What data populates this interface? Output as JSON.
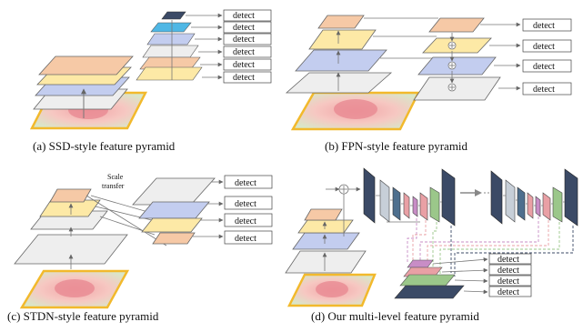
{
  "panels": {
    "a": {
      "caption": "(a) SSD-style feature pyramid"
    },
    "b": {
      "caption": "(b) FPN-style feature pyramid"
    },
    "c": {
      "caption": "(c) STDN-style feature pyramid",
      "annotation_line1": "Scale",
      "annotation_line2": "transfer"
    },
    "d": {
      "caption": "(d) Our multi-level feature pyramid"
    }
  },
  "detect_label": "detect",
  "colors": {
    "peach": "#f6c9a6",
    "yellow": "#fde9a6",
    "blue": "#c3cdef",
    "gray": "#eeeeee",
    "cyan": "#4fb7e5",
    "navy": "#3b4a66",
    "image_border": "#f2b92c",
    "rose": "#e9a0a5",
    "green": "#9bc78a",
    "purple": "#c88dc6",
    "tealblue": "#4e6f8e",
    "light_gray_block": "#c7cfd8"
  }
}
